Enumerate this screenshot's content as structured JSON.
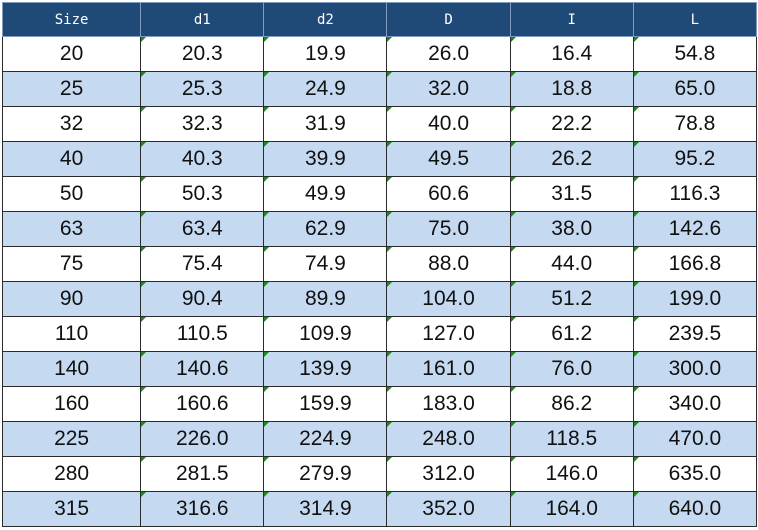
{
  "table": {
    "headers": [
      "Size",
      "d1",
      "d2",
      "D",
      "I",
      "L"
    ],
    "rows": [
      [
        "20",
        "20.3",
        "19.9",
        "26.0",
        "16.4",
        "54.8"
      ],
      [
        "25",
        "25.3",
        "24.9",
        "32.0",
        "18.8",
        "65.0"
      ],
      [
        "32",
        "32.3",
        "31.9",
        "40.0",
        "22.2",
        "78.8"
      ],
      [
        "40",
        "40.3",
        "39.9",
        "49.5",
        "26.2",
        "95.2"
      ],
      [
        "50",
        "50.3",
        "49.9",
        "60.6",
        "31.5",
        "116.3"
      ],
      [
        "63",
        "63.4",
        "62.9",
        "75.0",
        "38.0",
        "142.6"
      ],
      [
        "75",
        "75.4",
        "74.9",
        "88.0",
        "44.0",
        "166.8"
      ],
      [
        "90",
        "90.4",
        "89.9",
        "104.0",
        "51.2",
        "199.0"
      ],
      [
        "110",
        "110.5",
        "109.9",
        "127.0",
        "61.2",
        "239.5"
      ],
      [
        "140",
        "140.6",
        "139.9",
        "161.0",
        "76.0",
        "300.0"
      ],
      [
        "160",
        "160.6",
        "159.9",
        "183.0",
        "86.2",
        "340.0"
      ],
      [
        "225",
        "226.0",
        "224.9",
        "248.0",
        "118.5",
        "470.0"
      ],
      [
        "280",
        "281.5",
        "279.9",
        "312.0",
        "146.0",
        "635.0"
      ],
      [
        "315",
        "316.6",
        "314.9",
        "352.0",
        "164.0",
        "640.0"
      ]
    ]
  },
  "colors": {
    "header_bg": "#1f4a78",
    "header_text": "#ffffff",
    "alt_row_bg": "#c5d9f1",
    "row_bg": "#ffffff",
    "cell_marker": "#1a8a1a"
  }
}
